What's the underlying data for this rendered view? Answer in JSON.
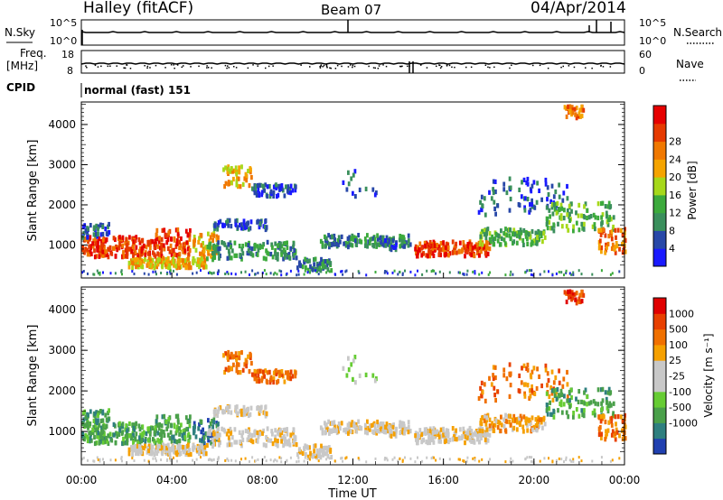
{
  "header": {
    "station": "Halley (fitACF)",
    "beam": "Beam 07",
    "date": "04/Apr/2014"
  },
  "status_panels": {
    "nsky_label": "N.Sky",
    "nsearch_label": "N.Search",
    "noise_ticks": [
      "10^5",
      "10^0"
    ],
    "freq_label_1": "Freq.",
    "freq_label_2": "[MHz]",
    "freq_ticks": [
      "18",
      "8"
    ],
    "nave_label": "Nave",
    "nave_ticks": [
      "60",
      "0"
    ],
    "cpid_label": "CPID",
    "cpid_value": "normal (fast) 151"
  },
  "x_axis": {
    "label": "Time UT",
    "ticks": [
      "00:00",
      "04:00",
      "08:00",
      "12:00",
      "16:00",
      "20:00",
      "00:00"
    ]
  },
  "colors": {
    "power_scale": [
      "#1a1aff",
      "#2848a8",
      "#3a8f5c",
      "#3caa3c",
      "#a6d81a",
      "#f5a400",
      "#f07800",
      "#e63a00",
      "#e60000"
    ],
    "velocity_scale": [
      "#2040b0",
      "#2e7f7f",
      "#4aa04a",
      "#66cc33",
      "#c8c8c8",
      "#c8c8c8",
      "#f5a000",
      "#f07000",
      "#e84000",
      "#e00000"
    ]
  },
  "chart_data": [
    {
      "type": "heatmap",
      "name": "power",
      "ylabel": "Slant Range [km]",
      "yticks": [
        1000,
        2000,
        3000,
        4000
      ],
      "xticks": [
        "00:00",
        "04:00",
        "08:00",
        "12:00",
        "16:00",
        "20:00",
        "00:00"
      ],
      "colorbar_label": "Power [dB]",
      "colorbar_ticks": [
        4,
        8,
        12,
        16,
        20,
        24,
        28
      ]
    },
    {
      "type": "heatmap",
      "name": "velocity",
      "ylabel": "Slant Range [km]",
      "yticks": [
        1000,
        2000,
        3000,
        4000
      ],
      "xticks": [
        "00:00",
        "04:00",
        "08:00",
        "12:00",
        "16:00",
        "20:00",
        "00:00"
      ],
      "colorbar_label": "Velocity [m s⁻¹]",
      "colorbar_ticks": [
        1000,
        500,
        100,
        25,
        -25,
        -100,
        -500,
        -1000
      ]
    }
  ]
}
